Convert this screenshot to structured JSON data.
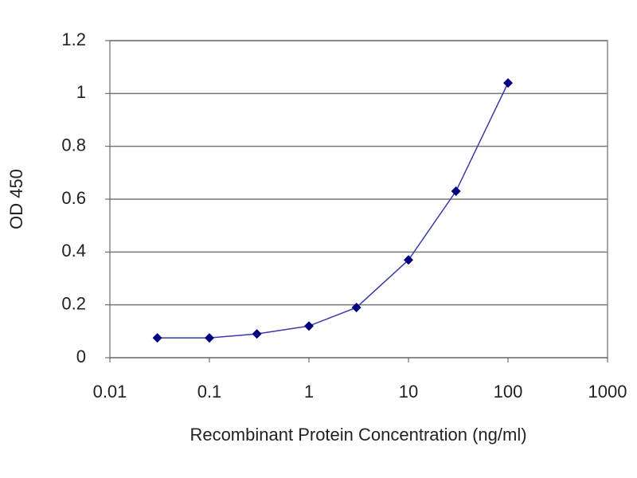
{
  "chart_data": {
    "type": "line",
    "x_label": "Recombinant Protein Concentration (ng/ml)",
    "y_label": "OD 450",
    "x": [
      0.03,
      0.1,
      0.3,
      1,
      3,
      10,
      30,
      100
    ],
    "series": [
      {
        "color": "#3a3aa8",
        "marker_color": "#000080",
        "values": [
          0.075,
          0.075,
          0.09,
          0.12,
          0.19,
          0.37,
          0.63,
          1.04
        ]
      }
    ],
    "xscale": "log",
    "xlim": [
      0.01,
      1000
    ],
    "xticks": [
      0.01,
      0.1,
      1,
      10,
      100,
      1000
    ],
    "ylim": [
      0,
      1.2
    ],
    "yticks": [
      0,
      0.2,
      0.4,
      0.6,
      0.8,
      1,
      1.2
    ],
    "grid": true
  }
}
